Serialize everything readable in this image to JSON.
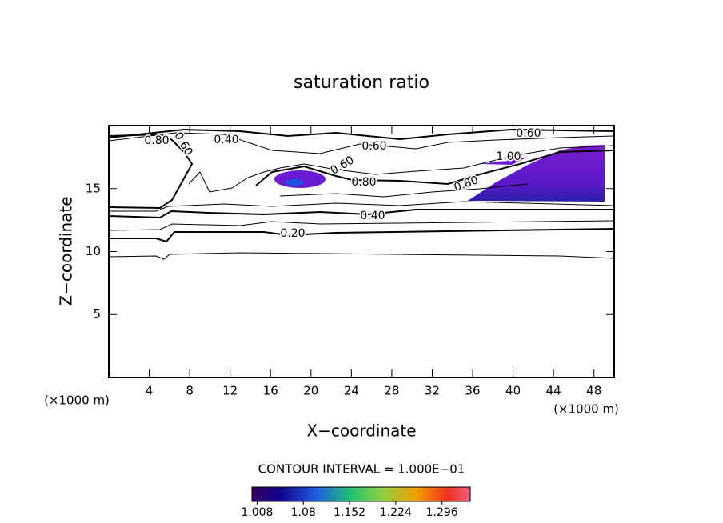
{
  "chart_data": {
    "type": "contour",
    "title": "saturation ratio",
    "x_label": "X−coordinate",
    "y_label": "Z−coordinate",
    "x_unit": "(×1000 m)",
    "y_unit": "(×1000 m)",
    "xlim": [
      0,
      50
    ],
    "xticks": [
      4,
      8,
      12,
      16,
      20,
      24,
      28,
      32,
      36,
      40,
      44,
      48
    ],
    "ylim": [
      0,
      20
    ],
    "yticks": [
      5,
      10,
      15
    ],
    "contour_note": "CONTOUR INTERVAL = 1.000E−01",
    "contour_labels": [
      {
        "value": 0.8,
        "label": "0.80"
      },
      {
        "value": 0.6,
        "label": "0.60"
      },
      {
        "value": 0.4,
        "label": "0.40"
      },
      {
        "value": 0.6,
        "label": "0.60"
      },
      {
        "value": 0.6,
        "label": "0.60"
      },
      {
        "value": 1.0,
        "label": "1.00"
      },
      {
        "value": 0.6,
        "label": "0.60"
      },
      {
        "value": 0.8,
        "label": "0.80"
      },
      {
        "value": 0.8,
        "label": "0.80"
      },
      {
        "value": 0.4,
        "label": "0.40"
      },
      {
        "value": 0.2,
        "label": "0.20"
      }
    ],
    "clim": [
      1.0,
      1.34
    ],
    "cticks": [
      1.008,
      1.08,
      1.152,
      1.224,
      1.296
    ]
  }
}
